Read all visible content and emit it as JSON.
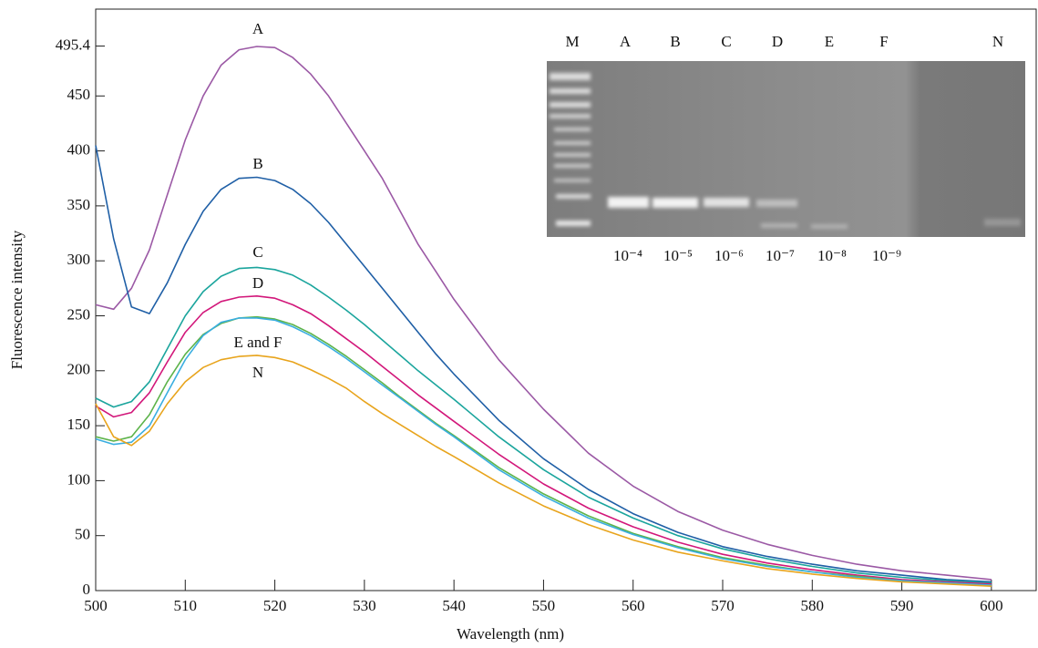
{
  "chart_data": {
    "type": "line",
    "x_label": "Wavelength (nm)",
    "y_label": "Fluorescence intensity",
    "x": [
      500,
      502,
      504,
      506,
      508,
      510,
      512,
      514,
      516,
      518,
      520,
      522,
      524,
      526,
      528,
      530,
      532,
      534,
      536,
      538,
      540,
      545,
      550,
      555,
      560,
      565,
      570,
      575,
      580,
      585,
      590,
      595,
      600
    ],
    "series": [
      {
        "name": "A",
        "color": "#9b59a5",
        "values": [
          260,
          256,
          275,
          310,
          360,
          410,
          450,
          478,
          492,
          495,
          494,
          485,
          470,
          450,
          425,
          400,
          375,
          345,
          315,
          290,
          265,
          210,
          165,
          125,
          95,
          72,
          55,
          42,
          32,
          24,
          18,
          14,
          10
        ]
      },
      {
        "name": "B",
        "color": "#1f5fa6",
        "values": [
          405,
          320,
          258,
          252,
          280,
          315,
          345,
          365,
          375,
          376,
          373,
          365,
          352,
          335,
          315,
          295,
          275,
          255,
          235,
          215,
          197,
          155,
          120,
          92,
          70,
          53,
          40,
          31,
          24,
          18,
          14,
          10,
          8
        ]
      },
      {
        "name": "C",
        "color": "#1ba59d",
        "values": [
          175,
          167,
          172,
          190,
          220,
          250,
          272,
          286,
          293,
          294,
          292,
          287,
          278,
          267,
          255,
          242,
          228,
          214,
          200,
          187,
          174,
          140,
          110,
          85,
          66,
          50,
          38,
          29,
          22,
          16,
          12,
          9,
          7
        ]
      },
      {
        "name": "D",
        "color": "#d2177a",
        "values": [
          168,
          158,
          162,
          180,
          208,
          235,
          253,
          263,
          267,
          268,
          266,
          260,
          252,
          241,
          229,
          217,
          204,
          191,
          178,
          166,
          154,
          124,
          97,
          75,
          58,
          44,
          33,
          25,
          19,
          14,
          10,
          8,
          6
        ]
      },
      {
        "color": "#5cb34a",
        "values": [
          140,
          136,
          140,
          160,
          190,
          215,
          233,
          243,
          248,
          249,
          247,
          242,
          234,
          224,
          213,
          201,
          189,
          176,
          164,
          152,
          141,
          112,
          88,
          68,
          52,
          40,
          30,
          23,
          17,
          13,
          9,
          7,
          5
        ]
      },
      {
        "color": "#3aaee0",
        "values": [
          138,
          133,
          135,
          150,
          180,
          210,
          232,
          244,
          248,
          248,
          246,
          240,
          232,
          222,
          211,
          199,
          187,
          175,
          163,
          151,
          140,
          110,
          86,
          66,
          51,
          39,
          29,
          22,
          17,
          12,
          9,
          7,
          5
        ]
      },
      {
        "name": "N",
        "color": "#e8a41c",
        "values": [
          170,
          140,
          132,
          145,
          170,
          190,
          203,
          210,
          213,
          214,
          212,
          208,
          201,
          193,
          184,
          172,
          161,
          151,
          141,
          131,
          122,
          98,
          77,
          60,
          46,
          35,
          27,
          20,
          15,
          11,
          8,
          6,
          4
        ]
      }
    ],
    "annotations": [
      "E and F"
    ],
    "xlim": [
      500,
      605
    ],
    "ylim": [
      0,
      529
    ],
    "xticks": [
      500,
      510,
      520,
      530,
      540,
      550,
      560,
      570,
      580,
      590,
      600
    ],
    "yticks": [
      0,
      50,
      100,
      150,
      200,
      250,
      300,
      350,
      400,
      450,
      495.4
    ],
    "inset": {
      "lanes": [
        "M",
        "A",
        "B",
        "C",
        "D",
        "E",
        "F",
        "N"
      ],
      "dilutions": [
        "10⁻⁴",
        "10⁻⁵",
        "10⁻⁶",
        "10⁻⁷",
        "10⁻⁸",
        "10⁻⁹"
      ]
    }
  }
}
